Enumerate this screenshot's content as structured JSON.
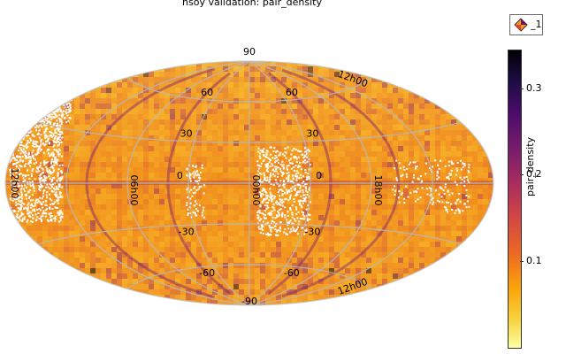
{
  "title": "hsoy validation: pair_density",
  "legend": {
    "label": "_1"
  },
  "colorbar": {
    "label": "pair_density",
    "ticks": [
      "0.1",
      "0.2",
      "0.3"
    ],
    "tick_values": [
      0.1,
      0.2,
      0.3
    ],
    "min": 0.0,
    "max": 0.345,
    "colormap": "inferno (reversed)"
  },
  "chart_data": {
    "type": "heatmap",
    "projection": "aitoff",
    "title": "hsoy validation: pair_density",
    "colorbar_label": "pair_density",
    "lat_labels": [
      "90",
      "60",
      "30",
      "0",
      "-30",
      "-60",
      "-90"
    ],
    "lon_labels": [
      "12h00",
      "06h00",
      "00h00",
      "18h00",
      "12h00"
    ],
    "lat_values": [
      90,
      60,
      30,
      0,
      -30,
      -60,
      -90
    ],
    "lon_values": [
      180,
      90,
      0,
      -90,
      -180
    ],
    "grid": true,
    "value_range": [
      0.0,
      0.345
    ],
    "colors": {
      "low": "#fcffa4",
      "mid": "#f08f23",
      "high": "#000004",
      "empty": "#ffffff",
      "grid": "#b8b8b8"
    }
  }
}
